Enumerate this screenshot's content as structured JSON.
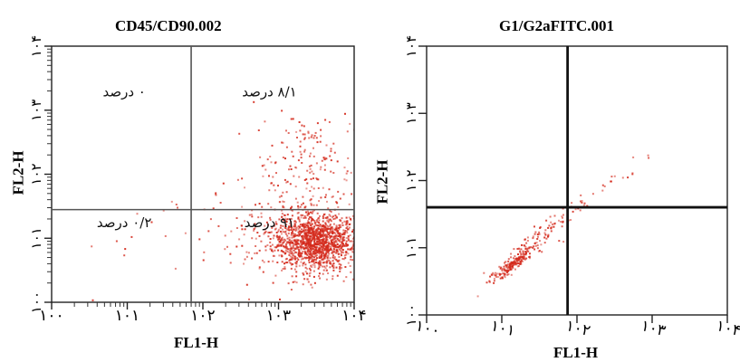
{
  "chart_data": [
    {
      "type": "scatter",
      "title": "CD45/CD90.002",
      "xlabel": "FL1-H",
      "ylabel": "FL2-H",
      "x_scale": "log",
      "y_scale": "log",
      "xlim": [
        1,
        10000
      ],
      "ylim": [
        1,
        10000
      ],
      "x_ticks": [
        "۱۰۰",
        "۱۰۱",
        "۱۰۲",
        "۱۰۳",
        "۱۰۴"
      ],
      "y_ticks": [
        "۱۰۰",
        "۱۰۱",
        "۱۰۲",
        "۱۰۳",
        "۱۰۴"
      ],
      "quadrant_gates": {
        "x": 70,
        "y": 28
      },
      "quadrant_labels": {
        "upper_left": "۰ درصد",
        "upper_right": "۸/۱ درصد",
        "lower_left": "۰/۲ درصد",
        "lower_right": "۹۱ درصد"
      },
      "color": "#d42a1c",
      "clusters": [
        {
          "center": [
            3000,
            9
          ],
          "spread": [
            0.28,
            0.22
          ],
          "count": 1400
        },
        {
          "center": [
            2500,
            150
          ],
          "spread": [
            0.35,
            0.45
          ],
          "count": 160
        },
        {
          "center": [
            900,
            15
          ],
          "spread": [
            0.45,
            0.4
          ],
          "count": 160
        },
        {
          "center": [
            40,
            8
          ],
          "spread": [
            0.6,
            0.5
          ],
          "count": 18
        }
      ]
    },
    {
      "type": "scatter",
      "title": "G1/G2aFITC.001",
      "xlabel": "FL1-H",
      "ylabel": "FL2-H",
      "x_scale": "log",
      "y_scale": "log",
      "xlim": [
        1,
        10000
      ],
      "ylim": [
        1,
        10000
      ],
      "x_ticks": [
        "۱۰۰",
        "۱۰۱",
        "۱۰۲",
        "۱۰۳",
        "۱۰۴"
      ],
      "y_ticks": [
        "۱۰۰",
        "۱۰۱",
        "۱۰۲",
        "۱۰۳",
        "۱۰۴"
      ],
      "quadrant_gates": {
        "x": 75,
        "y": 40
      },
      "color": "#d42a1c",
      "clusters": [
        {
          "center": [
            14,
            6
          ],
          "spread": [
            0.14,
            0.14
          ],
          "count": 170,
          "correlated": true
        },
        {
          "center": [
            30,
            14
          ],
          "spread": [
            0.3,
            0.3
          ],
          "count": 110,
          "correlated": true
        },
        {
          "center": [
            200,
            80
          ],
          "spread": [
            0.3,
            0.25
          ],
          "count": 20,
          "correlated": true
        }
      ]
    }
  ]
}
